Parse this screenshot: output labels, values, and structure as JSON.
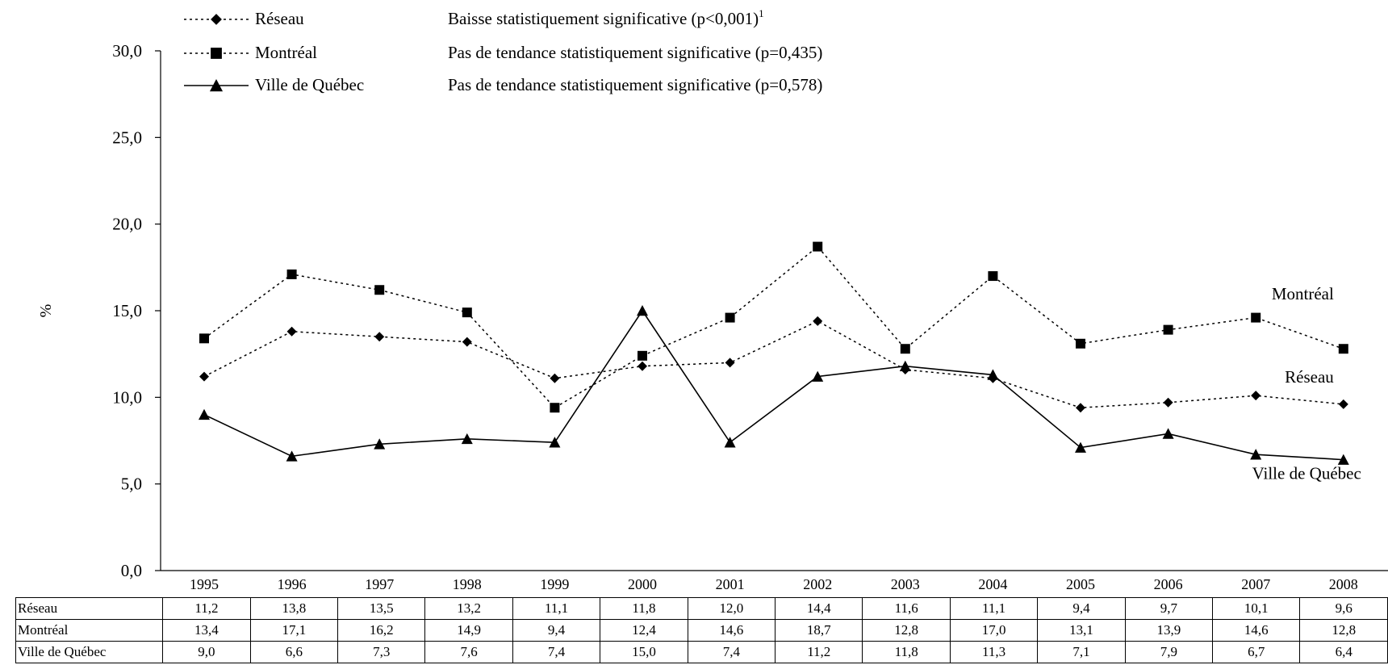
{
  "chart_data": {
    "type": "line",
    "title": "",
    "xlabel": "",
    "ylabel": "%",
    "ylim": [
      0,
      30
    ],
    "y_ticks": [
      "0,0",
      "5,0",
      "10,0",
      "15,0",
      "20,0",
      "25,0",
      "30,0"
    ],
    "categories": [
      "1995",
      "1996",
      "1997",
      "1998",
      "1999",
      "2000",
      "2001",
      "2002",
      "2003",
      "2004",
      "2005",
      "2006",
      "2007",
      "2008"
    ],
    "series": [
      {
        "name": "Réseau",
        "marker": "diamond",
        "dash": "dotted",
        "values": [
          11.2,
          13.8,
          13.5,
          13.2,
          11.1,
          11.8,
          12.0,
          14.4,
          11.6,
          11.1,
          9.4,
          9.7,
          10.1,
          9.6
        ],
        "labels": [
          "11,2",
          "13,8",
          "13,5",
          "13,2",
          "11,1",
          "11,8",
          "12,0",
          "14,4",
          "11,6",
          "11,1",
          "9,4",
          "9,7",
          "10,1",
          "9,6"
        ]
      },
      {
        "name": "Montréal",
        "marker": "square",
        "dash": "dotted",
        "values": [
          13.4,
          17.1,
          16.2,
          14.9,
          9.4,
          12.4,
          14.6,
          18.7,
          12.8,
          17.0,
          13.1,
          13.9,
          14.6,
          12.8
        ],
        "labels": [
          "13,4",
          "17,1",
          "16,2",
          "14,9",
          "9,4",
          "12,4",
          "14,6",
          "18,7",
          "12,8",
          "17,0",
          "13,1",
          "13,9",
          "14,6",
          "12,8"
        ]
      },
      {
        "name": "Ville de Québec",
        "marker": "triangle",
        "dash": "solid",
        "values": [
          9.0,
          6.6,
          7.3,
          7.6,
          7.4,
          15.0,
          7.4,
          11.2,
          11.8,
          11.3,
          7.1,
          7.9,
          6.7,
          6.4
        ],
        "labels": [
          "9,0",
          "6,6",
          "7,3",
          "7,6",
          "7,4",
          "15,0",
          "7,4",
          "11,2",
          "11,8",
          "11,3",
          "7,1",
          "7,9",
          "6,7",
          "6,4"
        ]
      }
    ],
    "legend": {
      "placement": "top",
      "descriptions": [
        {
          "text": "Baisse statistiquement significative (p<0,001)",
          "sup": "1"
        },
        {
          "text": "Pas de tendance statistiquement significative (p=0,435)",
          "sup": ""
        },
        {
          "text": "Pas de tendance statistiquement significative (p=0,578)",
          "sup": ""
        }
      ]
    },
    "line_end_labels": [
      "Réseau",
      "Montréal",
      "Ville de Québec"
    ],
    "grid": false,
    "data_table": true
  }
}
